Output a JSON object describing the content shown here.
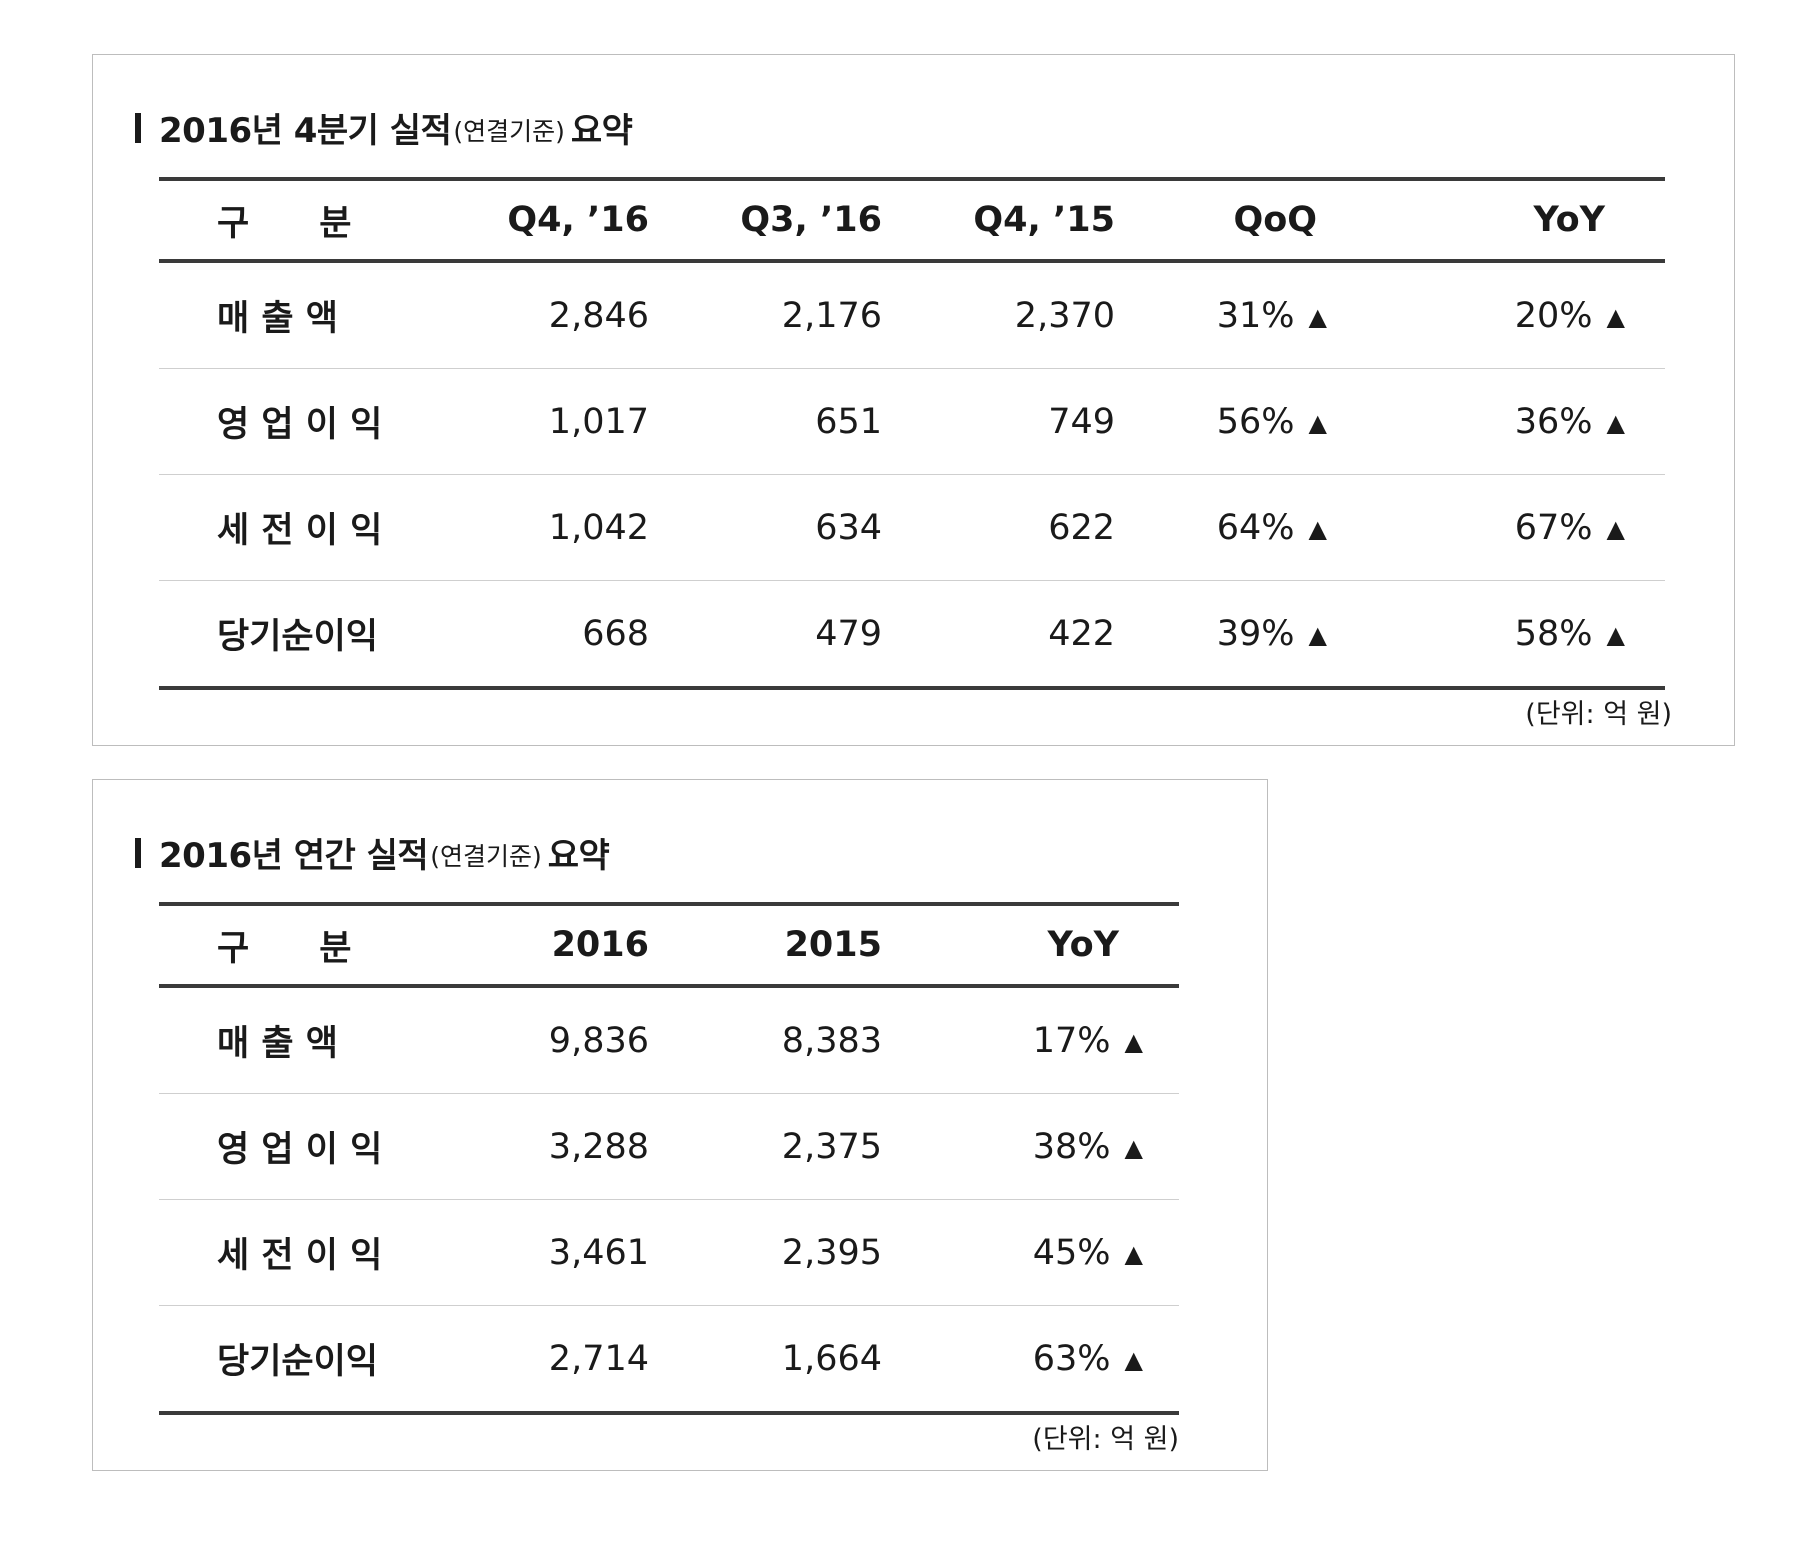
{
  "quarterly": {
    "title_main": "2016년 4분기 실적",
    "title_paren": "(연결기준)",
    "title_suffix": "요약",
    "headers": [
      "구　　분",
      "Q4, ’16",
      "Q3, ’16",
      "Q4, ’15",
      "QoQ",
      "YoY"
    ],
    "rows": [
      {
        "label": "매 출 액",
        "q4_16": "2,846",
        "q3_16": "2,176",
        "q4_15": "2,370",
        "qoq": "31%",
        "yoy": "20%"
      },
      {
        "label": "영 업 이 익",
        "q4_16": "1,017",
        "q3_16": "651",
        "q4_15": "749",
        "qoq": "56%",
        "yoy": "36%"
      },
      {
        "label": "세 전 이 익",
        "q4_16": "1,042",
        "q3_16": "634",
        "q4_15": "622",
        "qoq": "64%",
        "yoy": "67%"
      },
      {
        "label": "당기순이익",
        "q4_16": "668",
        "q3_16": "479",
        "q4_15": "422",
        "qoq": "39%",
        "yoy": "58%"
      }
    ],
    "unit_note": "(단위: 억 원)"
  },
  "annual": {
    "title_main": "2016년 연간 실적",
    "title_paren": "(연결기준)",
    "title_suffix": "요약",
    "headers": [
      "구　　분",
      "2016",
      "2015",
      "YoY"
    ],
    "rows": [
      {
        "label": "매 출 액",
        "y2016": "9,836",
        "y2015": "8,383",
        "yoy": "17%"
      },
      {
        "label": "영 업 이 익",
        "y2016": "3,288",
        "y2015": "2,375",
        "yoy": "38%"
      },
      {
        "label": "세 전 이 익",
        "y2016": "3,461",
        "y2015": "2,395",
        "yoy": "45%"
      },
      {
        "label": "당기순이익",
        "y2016": "2,714",
        "y2015": "1,664",
        "yoy": "63%"
      }
    ],
    "unit_note": "(단위: 억 원)"
  },
  "arrow_glyph": "▲"
}
